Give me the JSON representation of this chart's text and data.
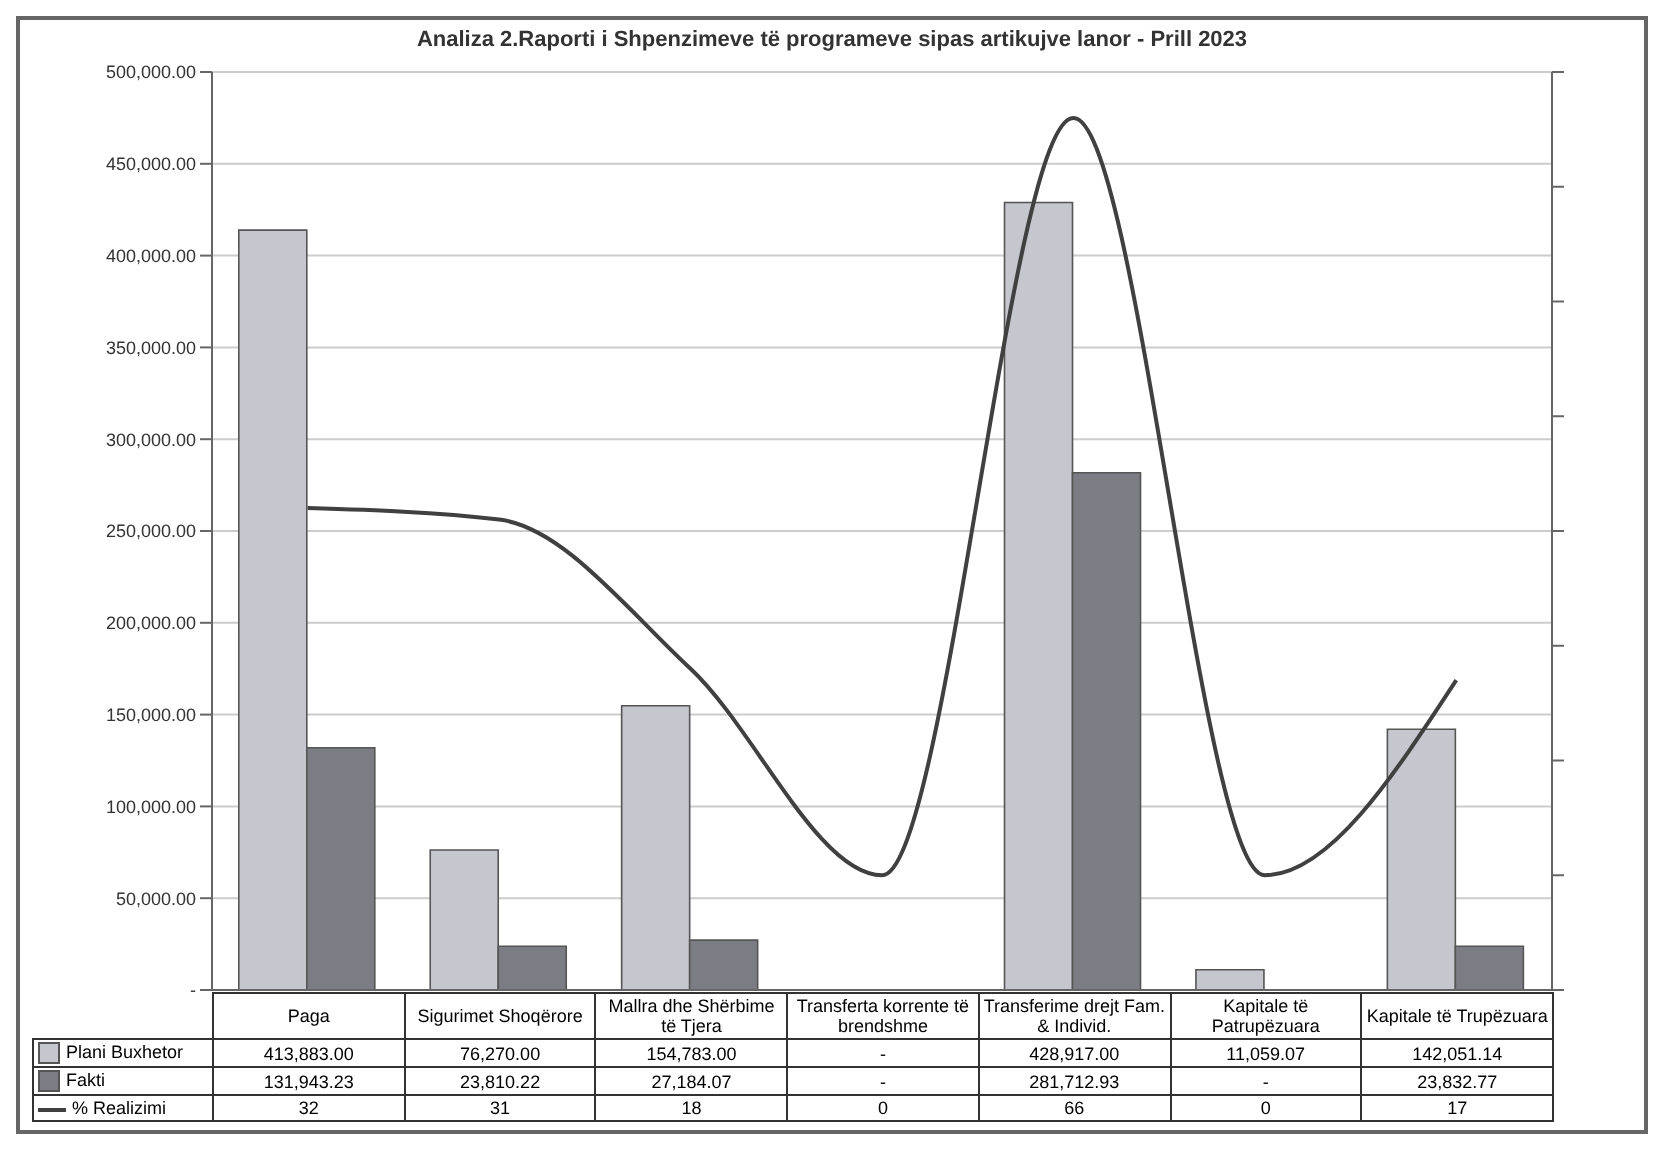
{
  "chart_data": {
    "type": "bar",
    "title": "Analiza 2.Raporti i Shpenzimeve të programeve sipas artikujve lanor - Prill 2023",
    "categories": [
      "Paga",
      "Sigurimet Shoqërore",
      "Mallra dhe Shërbime të Tjera",
      "Transferta korrente të brendshme",
      "Transferime drejt Fam. & Individ.",
      "Kapitale të Patrupëzuara",
      "Kapitale të Trupëzuara"
    ],
    "series": [
      {
        "name": "Plani Buxhetor",
        "color": "#c6c6ce",
        "values": [
          413883,
          76270,
          154783,
          null,
          428917,
          11059.07,
          142051.14
        ],
        "value_labels": [
          "413,883.00",
          "76,270.00",
          "154,783.00",
          "-",
          "428,917.00",
          "11,059.07",
          "142,051.14"
        ]
      },
      {
        "name": "Fakti",
        "color": "#7c7c84",
        "values": [
          131943.23,
          23810.22,
          27184.07,
          null,
          281712.93,
          null,
          23832.77
        ],
        "value_labels": [
          "131,943.23",
          "23,810.22",
          "27,184.07",
          "-",
          "281,712.93",
          "-",
          "23,832.77"
        ]
      },
      {
        "name": "% Realizimi",
        "type": "line",
        "axis": "y2",
        "color": "#404040",
        "values": [
          32,
          31,
          18,
          0,
          66,
          0,
          17
        ],
        "value_labels": [
          "32",
          "31",
          "18",
          "0",
          "66",
          "0",
          "17"
        ]
      }
    ],
    "ylim": [
      0,
      500000
    ],
    "yticks": [
      {
        "value": 0,
        "label": "-"
      },
      {
        "value": 50000,
        "label": "50,000.00"
      },
      {
        "value": 100000,
        "label": "100,000.00"
      },
      {
        "value": 150000,
        "label": "150,000.00"
      },
      {
        "value": 200000,
        "label": "200,000.00"
      },
      {
        "value": 250000,
        "label": "250,000.00"
      },
      {
        "value": 300000,
        "label": "300,000.00"
      },
      {
        "value": 350000,
        "label": "350,000.00"
      },
      {
        "value": 400000,
        "label": "400,000.00"
      },
      {
        "value": 450000,
        "label": "450,000.00"
      },
      {
        "value": 500000,
        "label": "500,000.00"
      }
    ],
    "y2lim": [
      -10,
      70
    ],
    "y2ticks": [
      {
        "value": -10,
        "label": null
      },
      {
        "value": 0,
        "label": null
      },
      {
        "value": 10,
        "label": null
      },
      {
        "value": 20,
        "label": null
      },
      {
        "value": 30,
        "label": null
      },
      {
        "value": 40,
        "label": null
      },
      {
        "value": 50,
        "label": null
      },
      {
        "value": 60,
        "label": null
      },
      {
        "value": 70,
        "label": null
      }
    ],
    "grid": "y",
    "legend": "bottom left",
    "marker": "none",
    "line_style": "solid"
  }
}
